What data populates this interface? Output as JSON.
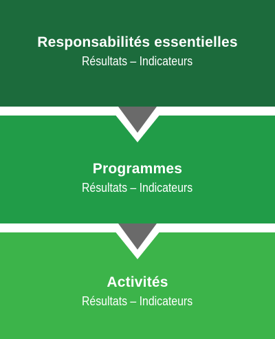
{
  "colors": {
    "level_1": "#1c6b3c",
    "level_2": "#219c48",
    "level_3": "#3cb44a",
    "arrow": "#6a6a6a",
    "text": "#ffffff"
  },
  "levels": [
    {
      "title": "Responsabilités essentielles",
      "subtitle": "Résultats – Indicateurs"
    },
    {
      "title": "Programmes",
      "subtitle": "Résultats – Indicateurs"
    },
    {
      "title": "Activités",
      "subtitle": "Résultats – Indicateurs"
    }
  ],
  "connectors": [
    {
      "icon": "chevron-down-icon"
    },
    {
      "icon": "chevron-down-icon"
    }
  ]
}
